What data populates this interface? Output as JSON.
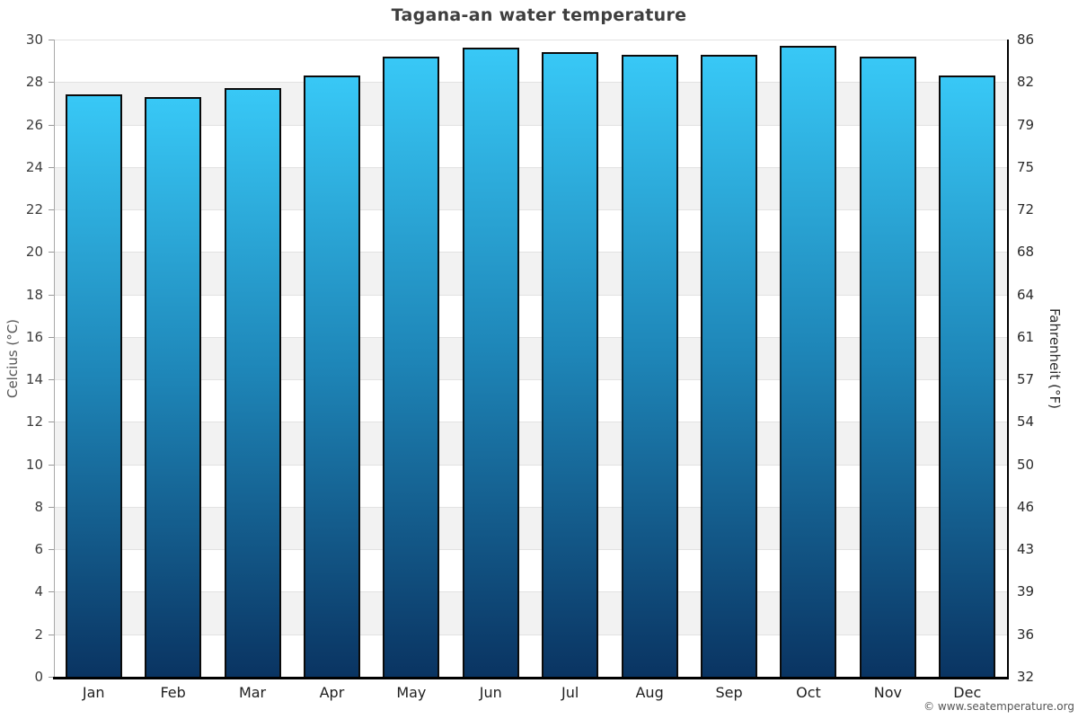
{
  "chart_data": {
    "type": "bar",
    "title": "Tagana-an water temperature",
    "categories": [
      "Jan",
      "Feb",
      "Mar",
      "Apr",
      "May",
      "Jun",
      "Jul",
      "Aug",
      "Sep",
      "Oct",
      "Nov",
      "Dec"
    ],
    "series": [
      {
        "name": "Water temperature (°C)",
        "values": [
          27.4,
          27.3,
          27.7,
          28.3,
          29.2,
          29.6,
          29.4,
          29.3,
          29.3,
          29.7,
          29.2,
          28.3
        ]
      }
    ],
    "xlabel": "",
    "ylabel_left": "Celcius (°C)",
    "ylabel_right": "Fahrenheit (°F)",
    "ylim_celsius": [
      0,
      30
    ],
    "yticks_celsius": [
      30,
      28,
      26,
      24,
      22,
      20,
      18,
      16,
      14,
      12,
      10,
      8,
      6,
      4,
      2,
      0
    ],
    "yticks_fahrenheit": [
      86,
      82,
      79,
      75,
      72,
      68,
      64,
      61,
      57,
      54,
      50,
      46,
      43,
      39,
      36,
      32
    ],
    "legend_position": "none",
    "grid": "alternating horizontal bands every 2°C, white and light gray"
  },
  "footer": {
    "credit": "© www.seatemperature.org"
  },
  "colors": {
    "bar_gradient_top": "#38c8f6",
    "bar_gradient_mid": "#1e86b8",
    "bar_gradient_bottom": "#0a3462",
    "bar_outline": "#0b0b0b",
    "band_gray": "#f2f2f2",
    "band_white": "#ffffff",
    "gridline": "#e2e2e2",
    "axis_left": "#a8a8a8",
    "axis_right": "#000000",
    "axis_bottom": "#000000",
    "title_text": "#3e3e3e",
    "tick_text": "#3d3d3d",
    "month_text": "#1f1f1f",
    "credit_text": "#555555"
  }
}
